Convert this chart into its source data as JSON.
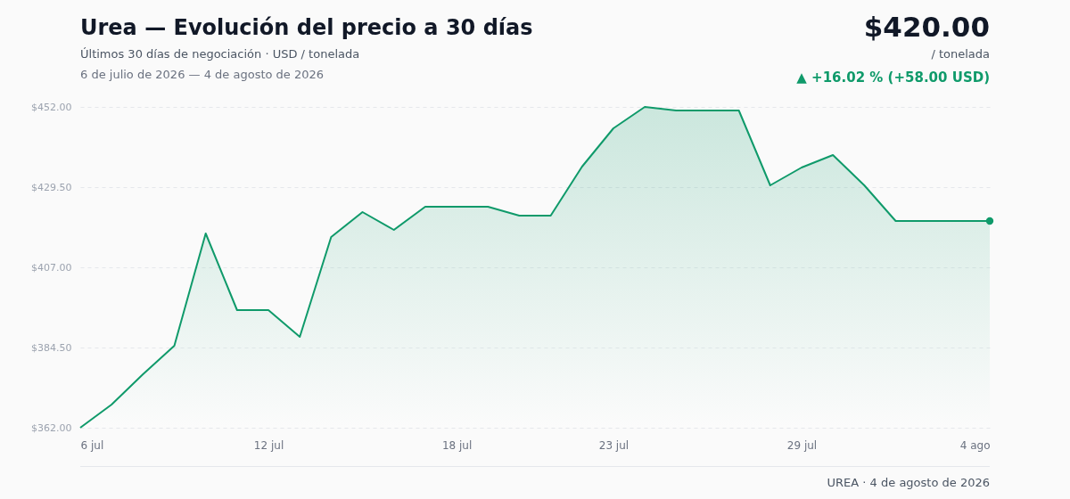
{
  "chart_data": {
    "type": "area",
    "title": "Urea — Evolución del precio a 30 días",
    "subtitle": "Últimos 30 días de negociación · USD / tonelada",
    "annotations": [
      "6 de julio de 2026 — 4 de agosto de 2026",
      "$420.00",
      "/ tonelada",
      "▲ +16.02 % (+58.00 USD)",
      "UREA · 4 de agosto de 2026"
    ],
    "x": [
      "2026-07-06",
      "2026-07-07",
      "2026-07-08",
      "2026-07-09",
      "2026-07-10",
      "2026-07-11",
      "2026-07-12",
      "2026-07-13",
      "2026-07-14",
      "2026-07-15",
      "2026-07-16",
      "2026-07-17",
      "2026-07-18",
      "2026-07-19",
      "2026-07-20",
      "2026-07-21",
      "2026-07-22",
      "2026-07-23",
      "2026-07-24",
      "2026-07-25",
      "2026-07-26",
      "2026-07-27",
      "2026-07-28",
      "2026-07-29",
      "2026-07-30",
      "2026-07-31",
      "2026-08-01",
      "2026-08-02",
      "2026-08-03",
      "2026-08-04"
    ],
    "series": [
      {
        "color": "#0f9a6a",
        "values": [
          362,
          368.5,
          377,
          385,
          416.5,
          395,
          395,
          387.5,
          415.5,
          422.5,
          417.5,
          424,
          424,
          424,
          421.5,
          421.5,
          435.25,
          446,
          452,
          451,
          451,
          451,
          430,
          435,
          438.5,
          430,
          420,
          420,
          420,
          420
        ]
      },
      {
        "type": "scatter",
        "color": "#0f9a6a",
        "x": [
          "2026-08-04"
        ],
        "values": [
          420
        ]
      }
    ],
    "xlim": [
      "2026-07-06",
      "2026-08-04"
    ],
    "xticks": [
      {
        "value": "2026-07-06",
        "label": "6 jul"
      },
      {
        "value": "2026-07-12",
        "label": "12 jul"
      },
      {
        "value": "2026-07-18",
        "label": "18 jul"
      },
      {
        "value": "2026-07-23",
        "label": "23 jul"
      },
      {
        "value": "2026-07-29",
        "label": "29 jul"
      },
      {
        "value": "2026-08-04",
        "label": "4 ago"
      }
    ],
    "ylim": [
      362,
      452
    ],
    "yticks": [
      {
        "value": 362,
        "label": "$362.00"
      },
      {
        "value": 384.5,
        "label": "$384.50"
      },
      {
        "value": 407,
        "label": "$407.00"
      },
      {
        "value": 429.5,
        "label": "$429.50"
      },
      {
        "value": 452,
        "label": "$452.00"
      }
    ],
    "grid": "y",
    "line_style": "solid"
  }
}
